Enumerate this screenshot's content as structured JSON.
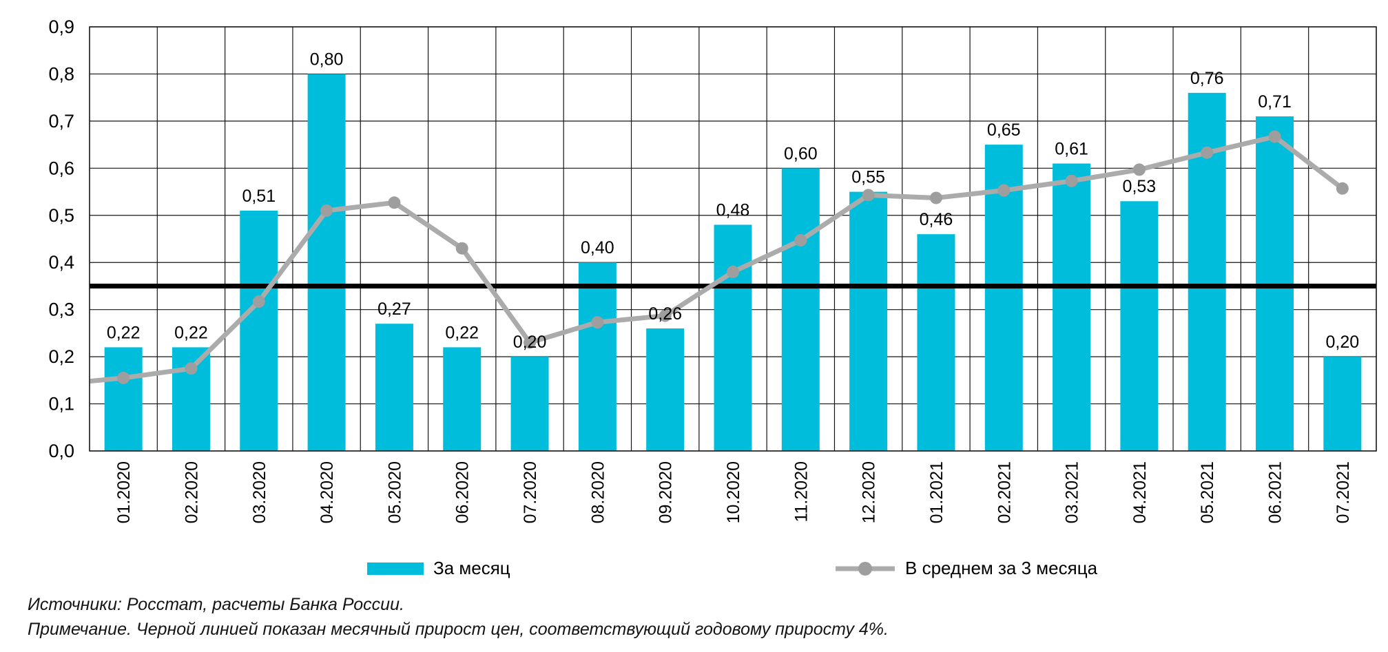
{
  "chart_data": {
    "type": "bar",
    "title": "",
    "xlabel": "",
    "ylabel": "",
    "ylim": [
      0.0,
      0.9
    ],
    "ytick_step": 0.1,
    "ytick_labels": [
      "0,0",
      "0,1",
      "0,2",
      "0,3",
      "0,4",
      "0,5",
      "0,6",
      "0,7",
      "0,8",
      "0,9"
    ],
    "grid": true,
    "legend_position": "bottom",
    "decimal_separator": ",",
    "categories": [
      "01.2020",
      "02.2020",
      "03.2020",
      "04.2020",
      "05.2020",
      "06.2020",
      "07.2020",
      "08.2020",
      "09.2020",
      "10.2020",
      "11.2020",
      "12.2020",
      "01.2021",
      "02.2021",
      "03.2021",
      "04.2021",
      "05.2021",
      "06.2021",
      "07.2021"
    ],
    "series": [
      {
        "name": "За месяц",
        "type": "bar",
        "color": "#00BEDB",
        "values": [
          0.22,
          0.22,
          0.51,
          0.8,
          0.27,
          0.22,
          0.2,
          0.4,
          0.26,
          0.48,
          0.6,
          0.55,
          0.46,
          0.65,
          0.61,
          0.53,
          0.76,
          0.71,
          0.2
        ],
        "labels": [
          "0,22",
          "0,22",
          "0,51",
          "0,80",
          "0,27",
          "0,22",
          "0,20",
          "0,40",
          "0,26",
          "0,48",
          "0,60",
          "0,55",
          "0,46",
          "0,65",
          "0,61",
          "0,53",
          "0,76",
          "0,71",
          "0,20"
        ]
      },
      {
        "name": "В среднем за 3 месяца",
        "type": "line",
        "color": "#ABABAB",
        "marker_color": "#9E9E9E",
        "lead_in_value": 0.148,
        "values": [
          0.155,
          0.175,
          0.317,
          0.51,
          0.527,
          0.43,
          0.23,
          0.273,
          0.287,
          0.38,
          0.447,
          0.543,
          0.537,
          0.553,
          0.573,
          0.597,
          0.633,
          0.667,
          0.557
        ]
      }
    ],
    "reference_line": {
      "value": 0.35,
      "color": "#000000",
      "meaning": "месячный прирост цен, соответствующий годовому приросту 4%"
    }
  },
  "legend": {
    "bar_label": "За месяц",
    "line_label": "В среднем за 3 месяца"
  },
  "footer": {
    "sources": "Источники: Росстат, расчеты Банка России.",
    "note": "Примечание. Черной линией показан месячный прирост цен, соответствующий годовому приросту 4%."
  }
}
